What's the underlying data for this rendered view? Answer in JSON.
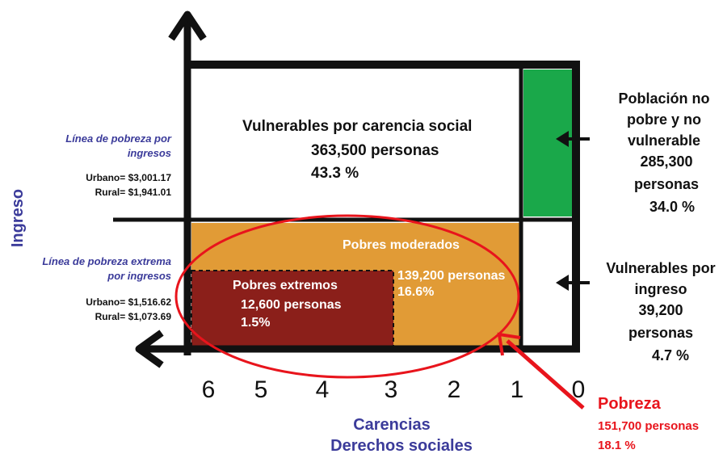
{
  "axis_label": "Ingreso",
  "income_lines": [
    {
      "title": [
        "Línea de pobreza por",
        "ingresos"
      ],
      "urban": "Urbano= $3,001.17",
      "rural": "Rural= $1,941.01"
    },
    {
      "title": [
        "Línea de pobreza extrema",
        "por ingresos"
      ],
      "urban": "Urbano= $1,516.62",
      "rural": "Rural= $1,073.69"
    }
  ],
  "groups": {
    "vulnerable_social": {
      "name": "Vulnerables por carencia social",
      "people": "363,500 personas",
      "percent": "43.3 %"
    },
    "not_poor": {
      "name": [
        "Población no",
        "pobre y no",
        "vulnerable"
      ],
      "people": [
        "285,300",
        "personas"
      ],
      "percent": "34.0 %"
    },
    "moderate": {
      "name": "Pobres moderados",
      "people": "139,200 personas",
      "percent": "16.6%"
    },
    "extreme": {
      "name": "Pobres extremos",
      "people": "12,600 personas",
      "percent": "1.5%"
    },
    "vulnerable_income": {
      "name": [
        "Vulnerables por",
        "ingreso"
      ],
      "people": [
        "39,200",
        "personas"
      ],
      "percent": "4.7 %"
    },
    "poverty": {
      "name": "Pobreza",
      "people": "151,700 personas",
      "percent": "18.1 %"
    }
  },
  "deprivation_ticks": [
    "6",
    "5",
    "4",
    "3",
    "2",
    "1",
    "0"
  ],
  "x_axis_label": [
    "Carencias",
    "Derechos sociales"
  ]
}
